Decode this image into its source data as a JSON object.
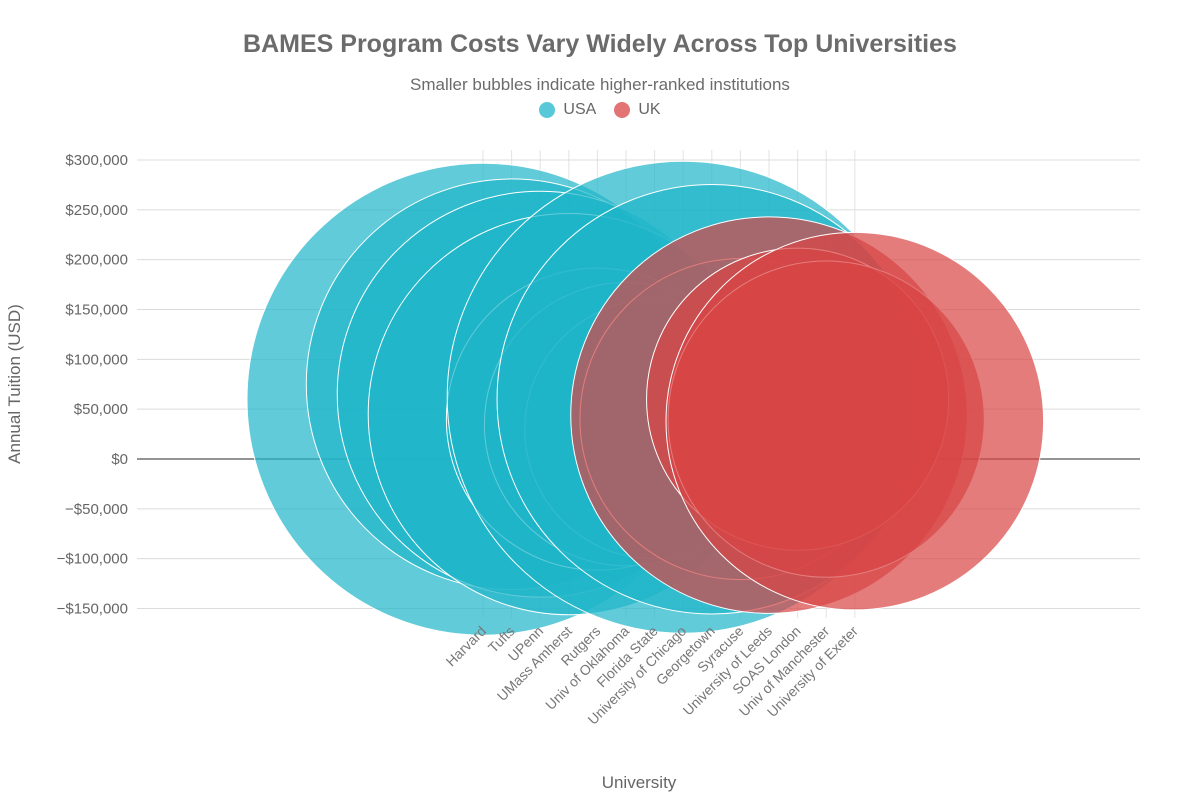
{
  "chart_data": {
    "type": "scatter",
    "title": "BAMES Program Costs Vary Widely Across Top Universities",
    "subtitle": "Smaller bubbles indicate higher-ranked institutions",
    "xlabel": "University",
    "ylabel": "Annual Tuition (USD)",
    "ylim": [
      -150000,
      300000
    ],
    "y_ticks": [
      300000,
      250000,
      200000,
      150000,
      100000,
      50000,
      0,
      -50000,
      -100000,
      -150000
    ],
    "y_tick_labels": [
      "$300,000",
      "$250,000",
      "$200,000",
      "$150,000",
      "$100,000",
      "$50,000",
      "$0",
      "−$50,000",
      "−$100,000",
      "−$150,000"
    ],
    "grid": true,
    "legend_position": "top-center",
    "categories": [
      "Harvard",
      "Tufts",
      "UPenn",
      "UMass Amherst",
      "Rutgers",
      "Univ of Oklahoma",
      "Florida State",
      "University of Chicago",
      "Georgetown",
      "Syracuse",
      "University of Leeds",
      "SOAS London",
      "Univ of Manchester",
      "University of Exeter"
    ],
    "series": [
      {
        "name": "USA",
        "color": "#1fb5c9",
        "points": [
          {
            "x": "Harvard",
            "y": 60000,
            "size": 100
          },
          {
            "x": "Tufts",
            "y": 75000,
            "size": 87
          },
          {
            "x": "UPenn",
            "y": 65000,
            "size": 86
          },
          {
            "x": "UMass Amherst",
            "y": 45000,
            "size": 85
          },
          {
            "x": "Rutgers",
            "y": 40000,
            "size": 64
          },
          {
            "x": "Univ of Oklahoma",
            "y": 35000,
            "size": 60
          },
          {
            "x": "Florida State",
            "y": 30000,
            "size": 55
          },
          {
            "x": "University of Chicago",
            "y": 62000,
            "size": 100
          },
          {
            "x": "Georgetown",
            "y": 60000,
            "size": 91
          },
          {
            "x": "Syracuse",
            "y": 40000,
            "size": 68
          }
        ]
      },
      {
        "name": "UK",
        "color": "#d94545",
        "points": [
          {
            "x": "University of Leeds",
            "y": 44000,
            "size": 84
          },
          {
            "x": "SOAS London",
            "y": 60000,
            "size": 64
          },
          {
            "x": "Univ of Manchester",
            "y": 40000,
            "size": 67
          },
          {
            "x": "University of Exeter",
            "y": 38000,
            "size": 80
          }
        ]
      }
    ]
  }
}
